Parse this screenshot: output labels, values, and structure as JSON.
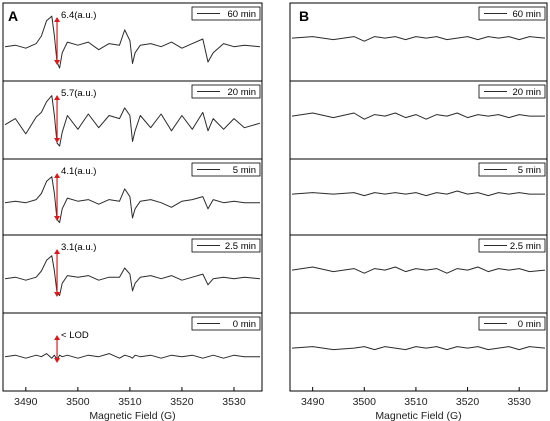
{
  "figure": {
    "panels": [
      {
        "letter": "A",
        "xlabel": "Magnetic Field (G)",
        "xlim": [
          3486,
          3535
        ],
        "xticks": [
          3490,
          3500,
          3510,
          3520,
          3530
        ],
        "subplots": [
          {
            "legend": "60 min",
            "annotation": "6.4(a.u.)"
          },
          {
            "legend": "20 min",
            "annotation": "5.7(a.u.)"
          },
          {
            "legend": "5 min",
            "annotation": "4.1(a.u.)"
          },
          {
            "legend": "2.5 min",
            "annotation": "3.1(a.u.)"
          },
          {
            "legend": "0 min",
            "annotation": "< LOD"
          }
        ]
      },
      {
        "letter": "B",
        "xlabel": "Magnetic Field (G)",
        "xlim": [
          3486,
          3535
        ],
        "xticks": [
          3490,
          3500,
          3510,
          3520,
          3530
        ],
        "subplots": [
          {
            "legend": "60 min"
          },
          {
            "legend": "20 min"
          },
          {
            "legend": "5 min"
          },
          {
            "legend": "2.5 min"
          },
          {
            "legend": "0 min"
          }
        ]
      }
    ]
  },
  "colors": {
    "trace": "#2b2b2b",
    "arrow": "#e01818",
    "frame": "#000000"
  },
  "chart_data": [
    {
      "type": "line",
      "panel": "A",
      "xlabel": "Magnetic Field (G)",
      "xlim": [
        3486,
        3535
      ],
      "series": [
        {
          "name": "60 min",
          "amplitude": 6.4,
          "x": [
            3486,
            3488,
            3490,
            3492,
            3493,
            3494,
            3495,
            3495.5,
            3496,
            3496.5,
            3497,
            3498,
            3500,
            3502,
            3504,
            3506,
            3508,
            3509,
            3510,
            3510.5,
            3511,
            3512,
            3514,
            3516,
            3518,
            3520,
            3522,
            3524,
            3525,
            3526,
            3528,
            3530,
            3532,
            3535
          ],
          "y": [
            0,
            0.05,
            -0.05,
            0.1,
            0.35,
            0.85,
            1.0,
            0.35,
            -0.5,
            -0.7,
            -0.2,
            0.15,
            0.05,
            0.15,
            -0.1,
            0.1,
            0.05,
            0.55,
            0.2,
            -0.55,
            -0.2,
            0.05,
            0.1,
            0.0,
            0.15,
            -0.05,
            0.1,
            0.25,
            -0.5,
            -0.2,
            0.1,
            0.0,
            0.05,
            0.0
          ]
        },
        {
          "name": "20 min",
          "amplitude": 5.7,
          "x": [
            3486,
            3488,
            3490,
            3492,
            3493,
            3494,
            3495,
            3495.5,
            3496,
            3496.5,
            3497,
            3498,
            3500,
            3502,
            3504,
            3506,
            3508,
            3509,
            3510,
            3510.5,
            3511,
            3512,
            3514,
            3516,
            3518,
            3520,
            3522,
            3524,
            3525,
            3526,
            3528,
            3530,
            3532,
            3535
          ],
          "y": [
            0,
            0.2,
            -0.3,
            0.25,
            0.4,
            0.75,
            0.95,
            0.3,
            -0.6,
            -0.7,
            -0.25,
            0.3,
            -0.15,
            0.35,
            -0.1,
            0.3,
            0.2,
            0.55,
            0.3,
            -0.55,
            -0.2,
            0.3,
            -0.1,
            0.35,
            -0.2,
            0.3,
            -0.15,
            0.4,
            -0.2,
            0.2,
            -0.15,
            0.2,
            -0.1,
            0.05
          ]
        },
        {
          "name": "5 min",
          "amplitude": 4.1,
          "x": [
            3486,
            3488,
            3490,
            3492,
            3493,
            3494,
            3495,
            3495.5,
            3496,
            3496.5,
            3497,
            3498,
            3500,
            3502,
            3504,
            3506,
            3508,
            3509,
            3510,
            3510.5,
            3511,
            3512,
            3514,
            3516,
            3518,
            3520,
            3522,
            3524,
            3525,
            3526,
            3528,
            3530,
            3532,
            3535
          ],
          "y": [
            0,
            0.05,
            0.0,
            0.1,
            0.3,
            0.7,
            0.85,
            0.3,
            -0.55,
            -0.65,
            -0.2,
            0.15,
            0.05,
            0.1,
            -0.05,
            0.1,
            0.05,
            0.45,
            0.2,
            -0.5,
            -0.2,
            0.05,
            0.1,
            0.0,
            -0.15,
            0.05,
            0.1,
            0.2,
            -0.2,
            0.1,
            0.0,
            0.05,
            0.0,
            0.0
          ]
        },
        {
          "name": "2.5 min",
          "amplitude": 3.1,
          "x": [
            3486,
            3488,
            3490,
            3492,
            3493,
            3494,
            3495,
            3495.5,
            3496,
            3496.5,
            3497,
            3498,
            3500,
            3502,
            3504,
            3506,
            3508,
            3509,
            3510,
            3510.5,
            3511,
            3512,
            3514,
            3516,
            3518,
            3520,
            3522,
            3524,
            3525,
            3526,
            3528,
            3530,
            3532,
            3535
          ],
          "y": [
            0,
            0.05,
            -0.05,
            0.05,
            0.25,
            0.6,
            0.75,
            0.25,
            -0.45,
            -0.55,
            -0.15,
            0.1,
            0.05,
            0.1,
            -0.05,
            0.05,
            0.05,
            0.35,
            0.15,
            -0.4,
            -0.15,
            0.05,
            0.1,
            0.0,
            0.1,
            -0.05,
            0.05,
            0.15,
            -0.2,
            0.0,
            0.05,
            0.0,
            0.05,
            0.0
          ]
        },
        {
          "name": "0 min",
          "amplitude": null,
          "x": [
            3486,
            3488,
            3490,
            3492,
            3493,
            3494,
            3495,
            3495.5,
            3496,
            3496.5,
            3497,
            3498,
            3500,
            3502,
            3504,
            3506,
            3508,
            3509,
            3510,
            3510.5,
            3511,
            3512,
            3514,
            3516,
            3518,
            3520,
            3522,
            3524,
            3525,
            3526,
            3528,
            3530,
            3532,
            3535
          ],
          "y": [
            0,
            0.05,
            -0.05,
            0.05,
            0.0,
            0.1,
            -0.05,
            0.05,
            -0.1,
            0.05,
            0.0,
            0.05,
            -0.05,
            0.05,
            0.0,
            0.1,
            -0.05,
            0.05,
            0.0,
            -0.05,
            0.05,
            0.0,
            0.05,
            -0.05,
            0.05,
            0.0,
            0.05,
            -0.05,
            0.0,
            0.05,
            -0.05,
            0.05,
            0.0,
            0.0
          ]
        }
      ]
    },
    {
      "type": "line",
      "panel": "B",
      "xlabel": "Magnetic Field (G)",
      "xlim": [
        3486,
        3535
      ],
      "series": [
        {
          "name": "60 min",
          "x": [
            3486,
            3490,
            3494,
            3498,
            3500,
            3502,
            3504,
            3506,
            3508,
            3510,
            3512,
            3514,
            3516,
            3518,
            3520,
            3522,
            3524,
            3526,
            3528,
            3530,
            3532,
            3535
          ],
          "y": [
            0,
            0.05,
            -0.05,
            0.05,
            -0.1,
            0.05,
            0.0,
            0.05,
            -0.05,
            0.05,
            0.0,
            0.05,
            -0.05,
            0.0,
            0.05,
            -0.05,
            0.05,
            0.0,
            0.05,
            -0.05,
            0.05,
            0.0
          ]
        },
        {
          "name": "20 min",
          "x": [
            3486,
            3490,
            3494,
            3498,
            3500,
            3502,
            3504,
            3506,
            3508,
            3510,
            3512,
            3514,
            3516,
            3518,
            3520,
            3522,
            3524,
            3526,
            3528,
            3530,
            3532,
            3535
          ],
          "y": [
            0,
            0.1,
            -0.05,
            0.1,
            -0.1,
            0.05,
            0.0,
            0.1,
            -0.05,
            0.05,
            -0.1,
            0.05,
            0.0,
            0.1,
            -0.05,
            0.05,
            0.0,
            0.05,
            -0.05,
            0.05,
            0.0,
            0.0
          ]
        },
        {
          "name": "5 min",
          "x": [
            3486,
            3490,
            3494,
            3498,
            3500,
            3502,
            3504,
            3506,
            3508,
            3510,
            3512,
            3514,
            3516,
            3518,
            3520,
            3522,
            3524,
            3526,
            3528,
            3530,
            3532,
            3535
          ],
          "y": [
            0,
            0.05,
            0.0,
            0.05,
            -0.05,
            0.05,
            0.0,
            0.05,
            0.0,
            0.05,
            -0.05,
            0.05,
            0.0,
            0.1,
            0.0,
            0.05,
            -0.05,
            0.05,
            0.0,
            0.05,
            0.0,
            0.0
          ]
        },
        {
          "name": "2.5 min",
          "x": [
            3486,
            3490,
            3494,
            3498,
            3500,
            3502,
            3504,
            3506,
            3508,
            3510,
            3512,
            3514,
            3516,
            3518,
            3520,
            3522,
            3524,
            3526,
            3528,
            3530,
            3532,
            3535
          ],
          "y": [
            0,
            0.1,
            -0.05,
            0.05,
            -0.1,
            0.05,
            0.0,
            0.1,
            -0.05,
            0.05,
            0.0,
            0.05,
            -0.1,
            0.05,
            0.0,
            0.1,
            -0.05,
            0.05,
            0.0,
            0.05,
            -0.05,
            0.0
          ]
        },
        {
          "name": "0 min",
          "x": [
            3486,
            3490,
            3494,
            3498,
            3500,
            3502,
            3504,
            3506,
            3508,
            3510,
            3512,
            3514,
            3516,
            3518,
            3520,
            3522,
            3524,
            3526,
            3528,
            3530,
            3532,
            3535
          ],
          "y": [
            0,
            0.05,
            -0.05,
            0.0,
            0.05,
            -0.05,
            0.05,
            0.0,
            -0.05,
            0.05,
            0.0,
            0.05,
            -0.05,
            0.05,
            0.0,
            0.05,
            -0.05,
            0.0,
            0.05,
            -0.05,
            0.05,
            0.0
          ]
        }
      ]
    }
  ]
}
